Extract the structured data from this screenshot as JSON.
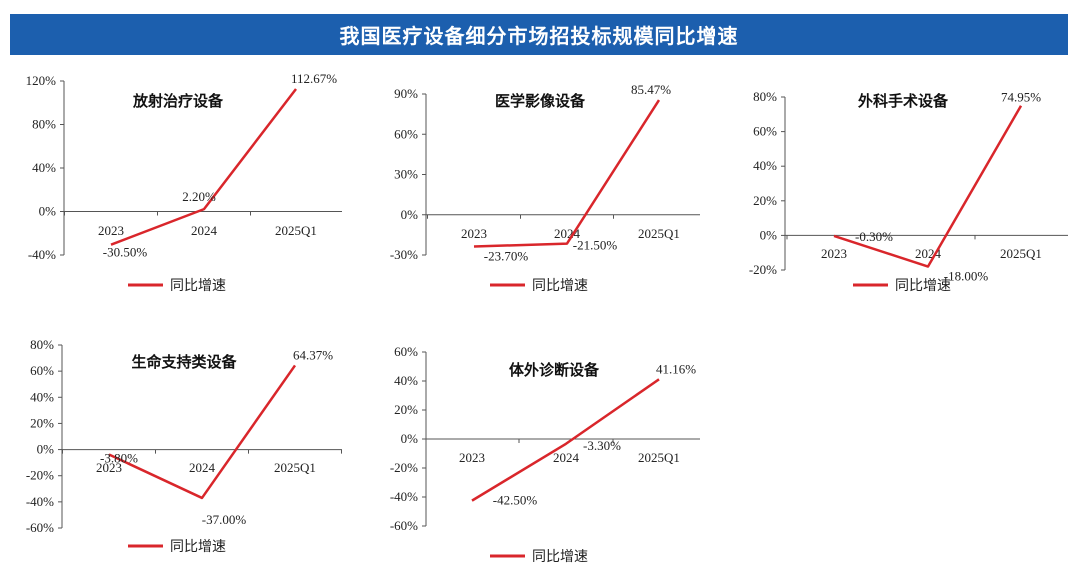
{
  "header": {
    "title": "我国医疗设备细分市场招投标规模同比增速"
  },
  "chart_data": [
    {
      "type": "line",
      "title": "放射治疗设备",
      "categories": [
        "2023",
        "2024",
        "2025Q1"
      ],
      "series": [
        {
          "name": "同比增速",
          "values": [
            -30.5,
            2.2,
            112.67
          ]
        }
      ],
      "value_labels": [
        "-30.50%",
        "2.20%",
        "112.67%"
      ],
      "yticks": [
        "-40%",
        "0%",
        "40%",
        "80%",
        "120%"
      ],
      "ylim": [
        -40,
        120
      ],
      "color": "#d9262b",
      "legend": "bottom"
    },
    {
      "type": "line",
      "title": "医学影像设备",
      "categories": [
        "2023",
        "2024",
        "2025Q1"
      ],
      "series": [
        {
          "name": "同比增速",
          "values": [
            -23.7,
            -21.5,
            85.47
          ]
        }
      ],
      "value_labels": [
        "-23.70%",
        "-21.50%",
        "85.47%"
      ],
      "yticks": [
        "-30%",
        "0%",
        "30%",
        "60%",
        "90%"
      ],
      "ylim": [
        -30,
        90
      ],
      "color": "#d9262b",
      "legend": "bottom"
    },
    {
      "type": "line",
      "title": "外科手术设备",
      "categories": [
        "2023",
        "2024",
        "2025Q1"
      ],
      "series": [
        {
          "name": "同比增速",
          "values": [
            -0.3,
            -18.0,
            74.95
          ]
        }
      ],
      "value_labels": [
        "-0.30%",
        "-18.00%",
        "74.95%"
      ],
      "yticks": [
        "-20%",
        "0%",
        "20%",
        "40%",
        "60%",
        "80%"
      ],
      "ylim": [
        -20,
        80
      ],
      "color": "#d9262b",
      "legend": "bottom"
    },
    {
      "type": "line",
      "title": "生命支持类设备",
      "categories": [
        "2023",
        "2024",
        "2025Q1"
      ],
      "series": [
        {
          "name": "同比增速",
          "values": [
            -3.8,
            -37.0,
            64.37
          ]
        }
      ],
      "value_labels": [
        "-3.80%",
        "-37.00%",
        "64.37%"
      ],
      "yticks": [
        "-60%",
        "-40%",
        "-20%",
        "0%",
        "20%",
        "40%",
        "60%",
        "80%"
      ],
      "ylim": [
        -60,
        80
      ],
      "color": "#d9262b",
      "legend": "bottom"
    },
    {
      "type": "line",
      "title": "体外诊断设备",
      "categories": [
        "2023",
        "2024",
        "2025Q1"
      ],
      "series": [
        {
          "name": "同比增速",
          "values": [
            -42.5,
            -3.3,
            41.16
          ]
        }
      ],
      "value_labels": [
        "-42.50%",
        "-3.30%",
        "41.16%"
      ],
      "yticks": [
        "-60%",
        "-40%",
        "-20%",
        "0%",
        "20%",
        "40%",
        "60%"
      ],
      "ylim": [
        -60,
        60
      ],
      "color": "#d9262b",
      "legend": "bottom"
    }
  ]
}
